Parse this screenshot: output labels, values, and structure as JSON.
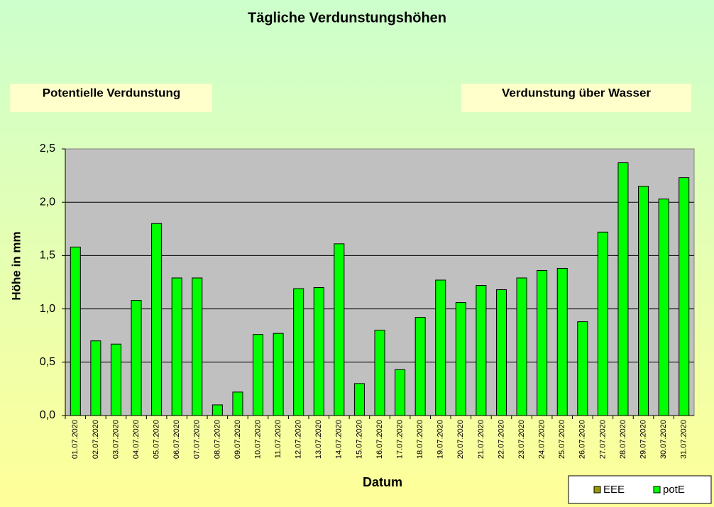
{
  "chart_data": {
    "type": "bar",
    "title": "Tägliche Verdunstungshöhen",
    "annotations": [
      {
        "text": "Potentielle Verdunstung",
        "color": "#33cc33"
      },
      {
        "text": "Verdunstung über Wasser",
        "color": "#99cc00"
      }
    ],
    "y_label": "Höhe in mm",
    "x_label": "Datum",
    "categories": [
      "01.07.2020",
      "02.07.2020",
      "03.07.2020",
      "04.07.2020",
      "05.07.2020",
      "06.07.2020",
      "07.07.2020",
      "08.07.2020",
      "09.07.2020",
      "10.07.2020",
      "11.07.2020",
      "12.07.2020",
      "13.07.2020",
      "14.07.2020",
      "15.07.2020",
      "16.07.2020",
      "17.07.2020",
      "18.07.2020",
      "19.07.2020",
      "20.07.2020",
      "21.07.2020",
      "22.07.2020",
      "23.07.2020",
      "24.07.2020",
      "25.07.2020",
      "26.07.2020",
      "27.07.2020",
      "28.07.2020",
      "29.07.2020",
      "30.07.2020",
      "31.07.2020"
    ],
    "series": [
      {
        "name": "EEE",
        "color": "#999900",
        "values": [
          null,
          null,
          null,
          null,
          null,
          null,
          null,
          null,
          null,
          null,
          null,
          null,
          null,
          null,
          null,
          null,
          null,
          null,
          null,
          null,
          null,
          null,
          null,
          null,
          null,
          null,
          null,
          null,
          null,
          null,
          null
        ]
      },
      {
        "name": "potE",
        "color": "#00ff00",
        "values": [
          1.58,
          0.7,
          0.67,
          1.08,
          1.8,
          1.29,
          1.29,
          0.1,
          0.22,
          0.76,
          0.77,
          1.19,
          1.2,
          1.61,
          0.3,
          0.8,
          0.43,
          0.92,
          1.27,
          1.06,
          1.22,
          1.18,
          1.29,
          1.36,
          1.38,
          0.88,
          1.72,
          2.37,
          2.15,
          2.03,
          2.23
        ]
      }
    ],
    "ylim": [
      0,
      2.5
    ],
    "yticks": [
      {
        "value": 0,
        "label": "0,0"
      },
      {
        "value": 0.5,
        "label": "0,5"
      },
      {
        "value": 1,
        "label": "1,0"
      },
      {
        "value": 1.5,
        "label": "1,5"
      },
      {
        "value": 2,
        "label": "2,0"
      },
      {
        "value": 2.5,
        "label": "2,5"
      }
    ],
    "grid": true
  }
}
